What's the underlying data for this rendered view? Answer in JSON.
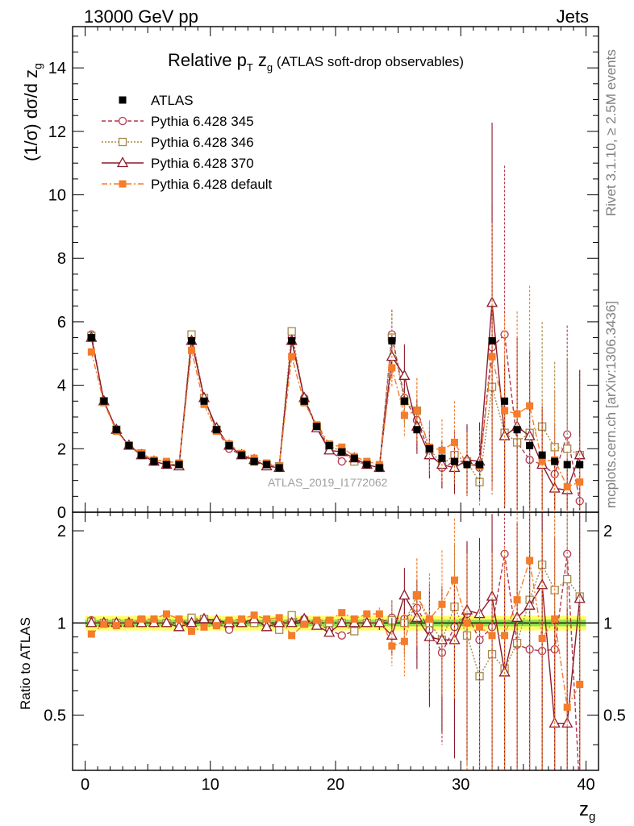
{
  "header": {
    "process": "13000 GeV pp",
    "channel": "Jets"
  },
  "title": {
    "main": "Relative p",
    "sub_t": "T",
    "mid": " z",
    "sub_g": "g",
    "tail": " (ATLAS soft-drop observables)"
  },
  "side_notes": {
    "rivet": "Rivet 3.1.10, ≥ 2.5M events",
    "mcplots": "mcplots.cern.ch [arXiv:1306.3436]"
  },
  "watermark": "ATLAS_2019_I1772062",
  "axes": {
    "ylabel_main": "(1/σ) dσ/d z",
    "ylabel_main_sub": "g",
    "ylabel_ratio": "Ratio to ATLAS",
    "xlabel": "z",
    "xlabel_sub": "g"
  },
  "colors": {
    "atlas": "#000000",
    "p345": "#b5374f",
    "p346": "#a58a4a",
    "p370": "#8b1a2a",
    "pdefault": "#f57c2a",
    "band_outer": "#ffff66",
    "band_inner": "#8fe04f"
  },
  "chart_data": {
    "type": "scatter",
    "x": [
      0.5,
      1.5,
      2.5,
      3.5,
      4.5,
      5.5,
      6.5,
      7.5,
      8.5,
      9.5,
      10.5,
      11.5,
      12.5,
      13.5,
      14.5,
      15.5,
      16.5,
      17.5,
      18.5,
      19.5,
      20.5,
      21.5,
      22.5,
      23.5,
      24.5,
      25.5,
      26.5,
      27.5,
      28.5,
      29.5,
      30.5,
      31.5,
      32.5,
      33.5,
      34.5,
      35.5,
      36.5,
      37.5,
      38.5,
      39.5
    ],
    "xlim": [
      -1,
      41
    ],
    "ylim_main": [
      0,
      15.3
    ],
    "ylim_ratio": [
      0.33,
      2.3
    ],
    "xticks": [
      0,
      10,
      20,
      30,
      40
    ],
    "yticks_main": [
      0,
      2,
      4,
      6,
      8,
      10,
      12,
      14
    ],
    "yticks_ratio": [
      0.5,
      1,
      2
    ],
    "series": [
      {
        "name": "ATLAS",
        "key": "atlas",
        "values": [
          5.5,
          3.5,
          2.6,
          2.1,
          1.8,
          1.6,
          1.5,
          1.5,
          5.4,
          3.5,
          2.6,
          2.1,
          1.8,
          1.6,
          1.5,
          1.4,
          5.4,
          3.5,
          2.7,
          2.1,
          1.9,
          1.7,
          1.5,
          1.4,
          5.4,
          3.5,
          2.6,
          2.0,
          1.7,
          1.6,
          1.5,
          1.5,
          5.4,
          3.5,
          2.6,
          2.1,
          1.8,
          1.6,
          1.5,
          1.5
        ],
        "ratio": [
          1,
          1,
          1,
          1,
          1,
          1,
          1,
          1,
          1,
          1,
          1,
          1,
          1,
          1,
          1,
          1,
          1,
          1,
          1,
          1,
          1,
          1,
          1,
          1,
          1,
          1,
          1,
          1,
          1,
          1,
          1,
          1,
          1,
          1,
          1,
          1,
          1,
          1,
          1,
          1
        ]
      },
      {
        "name": "Pythia 6.428 345",
        "key": "p345",
        "values": [
          5.6,
          3.5,
          2.6,
          2.1,
          1.8,
          1.6,
          1.5,
          1.5,
          5.5,
          3.6,
          2.6,
          2.0,
          1.8,
          1.6,
          1.5,
          1.4,
          5.5,
          3.6,
          2.7,
          2.0,
          1.6,
          1.6,
          1.5,
          1.4,
          5.6,
          3.6,
          2.9,
          1.9,
          1.4,
          1.6,
          1.6,
          1.4,
          5.2,
          5.6,
          2.2,
          1.65,
          1.5,
          1.2,
          2.45,
          0.35
        ],
        "ratio": [
          1.02,
          1.0,
          1.0,
          1.0,
          1.0,
          1.0,
          1.0,
          1.0,
          1.02,
          1.03,
          1.0,
          0.95,
          1.0,
          1.0,
          1.0,
          1.0,
          1.02,
          1.03,
          1.0,
          0.95,
          0.91,
          0.94,
          1.0,
          1.0,
          1.04,
          1.03,
          1.12,
          0.95,
          0.8,
          0.97,
          1.07,
          0.88,
          0.97,
          1.68,
          0.85,
          0.82,
          0.81,
          0.82,
          1.68,
          0.28
        ]
      },
      {
        "name": "Pythia 6.428 346",
        "key": "p346",
        "values": [
          5.55,
          3.5,
          2.6,
          2.1,
          1.85,
          1.6,
          1.5,
          1.5,
          5.6,
          3.6,
          2.6,
          2.1,
          1.8,
          1.6,
          1.5,
          1.45,
          5.7,
          3.5,
          2.7,
          2.1,
          1.9,
          1.6,
          1.5,
          1.4,
          5.5,
          3.5,
          3.2,
          2.0,
          1.5,
          1.8,
          1.6,
          0.95,
          3.95,
          2.5,
          2.2,
          2.5,
          2.7,
          2.05,
          2.0,
          1.8
        ],
        "ratio": [
          1.01,
          1.0,
          1.0,
          1.0,
          1.02,
          1.0,
          1.0,
          1.0,
          1.04,
          1.03,
          1.0,
          1.0,
          1.0,
          1.0,
          1.0,
          0.95,
          1.06,
          1.0,
          1.0,
          1.0,
          1.0,
          0.94,
          1.0,
          1.0,
          1.02,
          1.0,
          1.23,
          1.0,
          0.88,
          1.13,
          0.91,
          0.67,
          0.79,
          0.71,
          0.86,
          1.19,
          1.55,
          1.28,
          1.39,
          1.22
        ]
      },
      {
        "name": "Pythia 6.428 370",
        "key": "p370",
        "values": [
          5.5,
          3.5,
          2.6,
          2.1,
          1.8,
          1.6,
          1.5,
          1.45,
          5.4,
          3.6,
          2.65,
          2.1,
          1.8,
          1.65,
          1.45,
          1.4,
          5.4,
          3.6,
          2.65,
          1.95,
          1.9,
          1.7,
          1.5,
          1.4,
          4.9,
          4.3,
          2.7,
          1.8,
          1.5,
          1.4,
          1.65,
          1.6,
          6.6,
          2.4,
          2.7,
          2.4,
          1.5,
          0.75,
          0.7,
          1.8
        ],
        "ratio": [
          1.0,
          1.0,
          1.0,
          1.0,
          1.0,
          1.0,
          1.0,
          0.97,
          1.0,
          1.03,
          1.02,
          1.0,
          1.0,
          1.03,
          0.97,
          1.0,
          1.0,
          1.03,
          0.98,
          0.93,
          1.0,
          1.0,
          1.0,
          1.0,
          0.91,
          1.23,
          1.04,
          0.9,
          0.88,
          0.88,
          1.1,
          1.07,
          1.22,
          0.69,
          1.04,
          1.14,
          1.33,
          0.47,
          0.47,
          1.2
        ]
      },
      {
        "name": "Pythia 6.428 default",
        "key": "pdefault",
        "values": [
          5.05,
          3.45,
          2.55,
          2.1,
          1.85,
          1.65,
          1.6,
          1.55,
          5.1,
          3.4,
          2.55,
          2.15,
          1.85,
          1.7,
          1.55,
          1.45,
          4.9,
          3.45,
          2.75,
          2.15,
          2.05,
          1.75,
          1.6,
          1.5,
          4.55,
          3.05,
          3.2,
          2.05,
          1.95,
          2.2,
          1.5,
          1.45,
          4.9,
          3.2,
          3.1,
          3.35,
          1.6,
          1.65,
          0.8,
          0.95
        ],
        "ratio": [
          0.92,
          0.99,
          0.98,
          1.0,
          1.03,
          1.03,
          1.07,
          1.03,
          0.94,
          0.97,
          0.98,
          1.02,
          1.03,
          1.06,
          1.03,
          1.04,
          0.91,
          0.99,
          1.02,
          1.02,
          1.08,
          1.03,
          1.07,
          1.07,
          0.84,
          0.87,
          1.23,
          1.03,
          1.15,
          1.38,
          1.0,
          0.97,
          0.91,
          0.91,
          1.19,
          1.6,
          0.89,
          1.03,
          0.53,
          0.63
        ]
      }
    ],
    "legend": [
      "ATLAS",
      "Pythia 6.428 345",
      "Pythia 6.428 346",
      "Pythia 6.428 370",
      "Pythia 6.428 default"
    ],
    "legend_position": "top-left"
  }
}
